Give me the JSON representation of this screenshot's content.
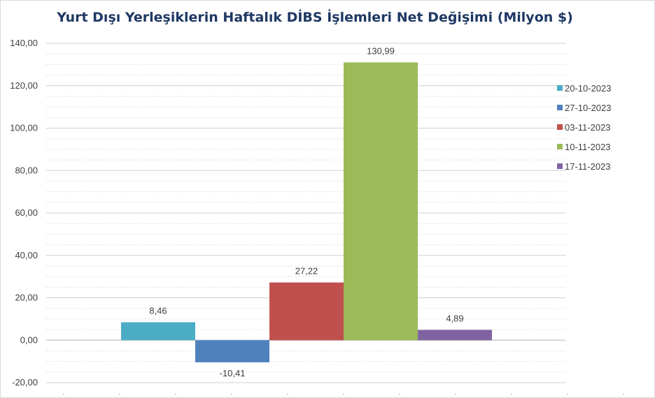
{
  "chart_data": {
    "type": "bar",
    "title": "Yurt Dışı Yerleşiklerin Haftalık DİBS İşlemleri Net Değişimi (Milyon $)",
    "xlabel": "",
    "ylabel": "",
    "ylim": [
      -20,
      140
    ],
    "ytick_step": 20,
    "ytick_labels": [
      "-20,00",
      "0,00",
      "20,00",
      "40,00",
      "60,00",
      "80,00",
      "100,00",
      "120,00",
      "140,00"
    ],
    "grid": true,
    "legend_position": "right",
    "series": [
      {
        "name": "20-10-2023",
        "value": 8.46,
        "label": "8,46",
        "color": "#4bacc6"
      },
      {
        "name": "27-10-2023",
        "value": -10.41,
        "label": "-10,41",
        "color": "#4f81bd"
      },
      {
        "name": "03-11-2023",
        "value": 27.22,
        "label": "27,22",
        "color": "#c0504d"
      },
      {
        "name": "10-11-2023",
        "value": 130.99,
        "label": "130,99",
        "color": "#9bbb59"
      },
      {
        "name": "17-11-2023",
        "value": 4.89,
        "label": "4,89",
        "color": "#8064a2"
      }
    ]
  }
}
